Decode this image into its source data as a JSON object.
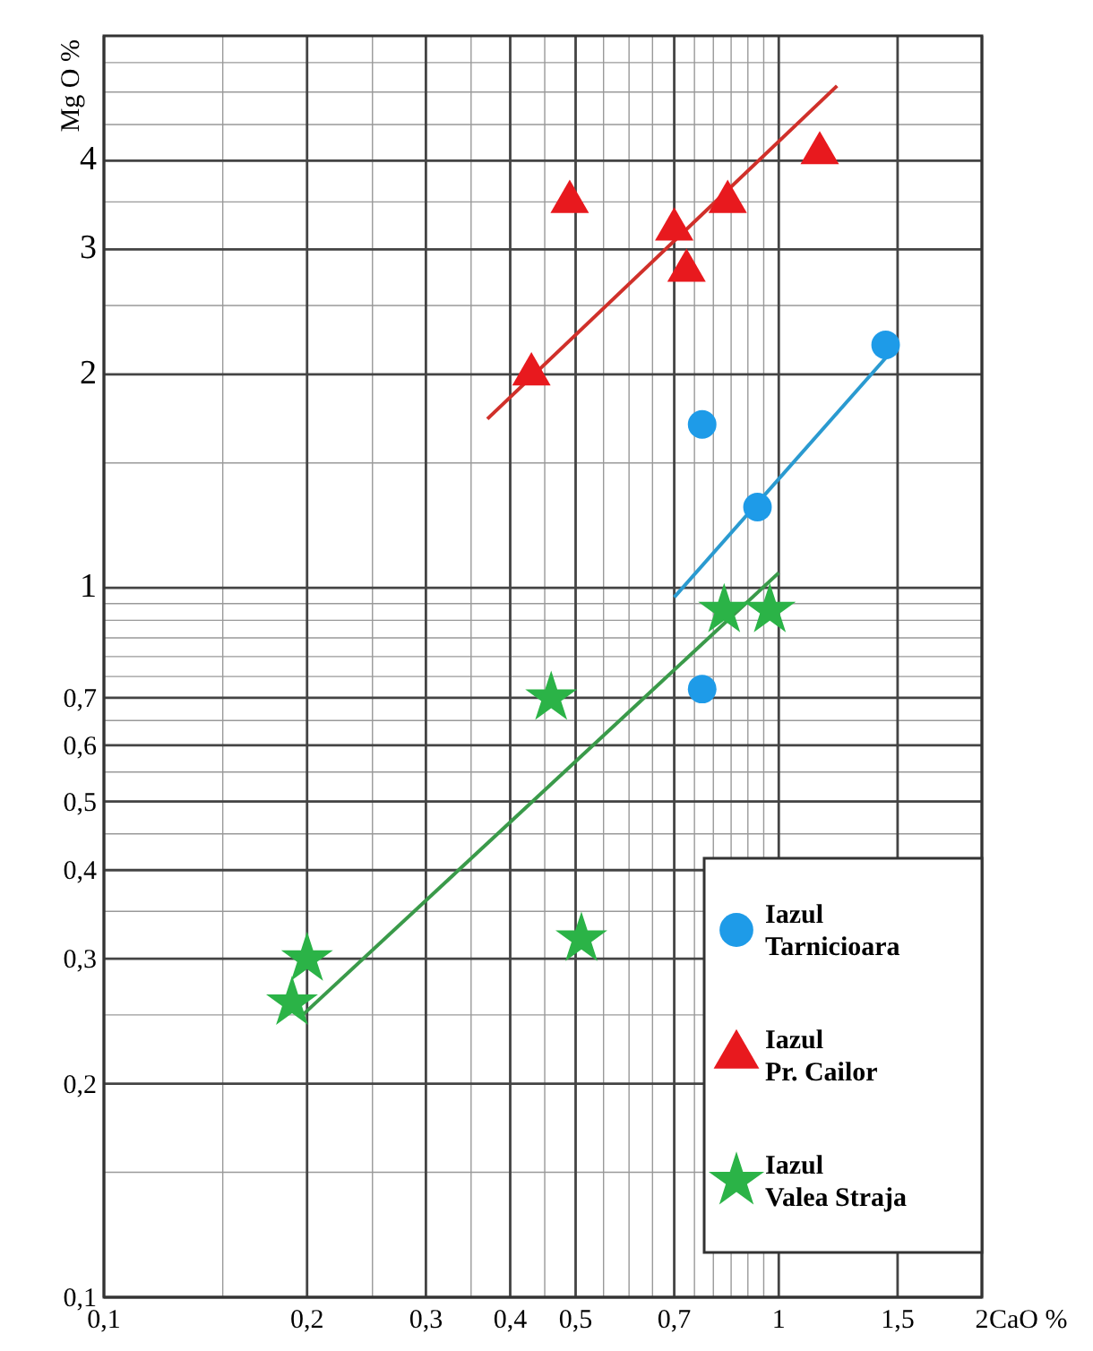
{
  "chart_data": {
    "type": "scatter",
    "xlabel": "CaO %",
    "ylabel": "Mg O %",
    "log": "xy",
    "grid": true,
    "legend": "bottom right",
    "xlim": [
      0.1,
      2
    ],
    "ylim": [
      0.1,
      6
    ],
    "xticks": [
      {
        "value": 0.1,
        "label": "0,1"
      },
      {
        "value": 0.2,
        "label": "0,2"
      },
      {
        "value": 0.3,
        "label": "0,3"
      },
      {
        "value": 0.4,
        "label": "0,4"
      },
      {
        "value": 0.5,
        "label": "0,5"
      },
      {
        "value": 0.7,
        "label": "0,7"
      },
      1,
      {
        "value": 1.5,
        "label": "1,5"
      },
      2
    ],
    "yticks": [
      {
        "value": 0.1,
        "label": "0,1"
      },
      {
        "value": 0.2,
        "label": "0,2"
      },
      {
        "value": 0.3,
        "label": "0,3"
      },
      {
        "value": 0.4,
        "label": "0,4"
      },
      {
        "value": 0.5,
        "label": "0,5"
      },
      {
        "value": 0.6,
        "label": "0,6"
      },
      {
        "value": 0.7,
        "label": "0,7"
      },
      1,
      2,
      3,
      4
    ],
    "series": [
      {
        "name": "Iazul Tarnicioara",
        "marker": "circle",
        "color": "#1e9be8",
        "x": [
          0.77,
          0.93,
          1.44,
          0.77
        ],
        "values": [
          1.7,
          1.3,
          2.2,
          0.72
        ]
      },
      {
        "name": "Iazul Pr. Cailor",
        "marker": "triangle",
        "color": "#e8191e",
        "x": [
          0.43,
          0.49,
          0.7,
          0.73,
          0.84,
          1.15
        ],
        "values": [
          2.0,
          3.5,
          3.2,
          2.8,
          3.5,
          4.1
        ]
      },
      {
        "name": "Iazul Valea Straja",
        "marker": "star",
        "color": "#2bb347",
        "x": [
          0.19,
          0.2,
          0.46,
          0.51,
          0.83,
          0.97
        ],
        "values": [
          0.26,
          0.3,
          0.7,
          0.32,
          0.93,
          0.93
        ]
      },
      {
        "type": "line",
        "color": "#2a9ad0",
        "x": [
          0.7,
          1.46
        ],
        "values": [
          0.97,
          2.14
        ]
      },
      {
        "type": "line",
        "color": "#d0302a",
        "x": [
          0.37,
          1.22
        ],
        "values": [
          1.73,
          5.1
        ]
      },
      {
        "type": "line",
        "color": "#3a9a4a",
        "x": [
          0.197,
          1.0
        ],
        "values": [
          0.25,
          1.05
        ]
      }
    ]
  }
}
